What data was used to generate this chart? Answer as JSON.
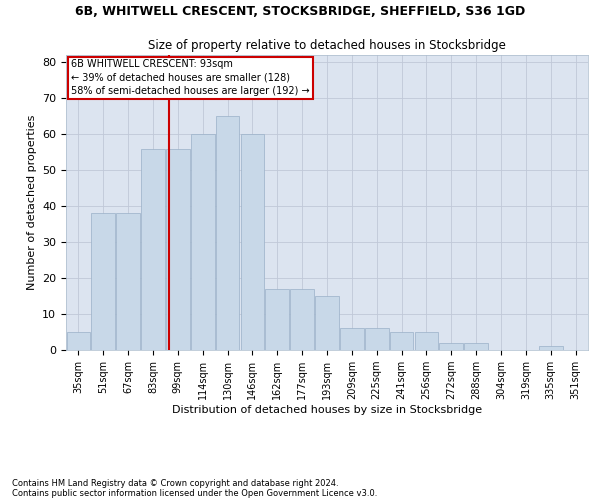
{
  "title1": "6B, WHITWELL CRESCENT, STOCKSBRIDGE, SHEFFIELD, S36 1GD",
  "title2": "Size of property relative to detached houses in Stocksbridge",
  "xlabel": "Distribution of detached houses by size in Stocksbridge",
  "ylabel": "Number of detached properties",
  "categories": [
    "35sqm",
    "51sqm",
    "67sqm",
    "83sqm",
    "99sqm",
    "114sqm",
    "130sqm",
    "146sqm",
    "162sqm",
    "177sqm",
    "193sqm",
    "209sqm",
    "225sqm",
    "241sqm",
    "256sqm",
    "272sqm",
    "288sqm",
    "304sqm",
    "319sqm",
    "335sqm",
    "351sqm"
  ],
  "values": [
    5,
    38,
    38,
    56,
    56,
    60,
    65,
    60,
    17,
    17,
    15,
    6,
    6,
    5,
    5,
    2,
    2,
    0,
    0,
    1,
    0
  ],
  "bar_color": "#c8d8e8",
  "bar_edge_color": "#9ab0c8",
  "grid_color": "#c0c8d8",
  "bg_color": "#dce4f0",
  "vline_color": "#cc0000",
  "vline_pos": 3.625,
  "annotation_text": "6B WHITWELL CRESCENT: 93sqm\n← 39% of detached houses are smaller (128)\n58% of semi-detached houses are larger (192) →",
  "annotation_box_color": "#cc0000",
  "ylim": [
    0,
    82
  ],
  "yticks": [
    0,
    10,
    20,
    30,
    40,
    50,
    60,
    70,
    80
  ],
  "footnote1": "Contains HM Land Registry data © Crown copyright and database right 2024.",
  "footnote2": "Contains public sector information licensed under the Open Government Licence v3.0."
}
